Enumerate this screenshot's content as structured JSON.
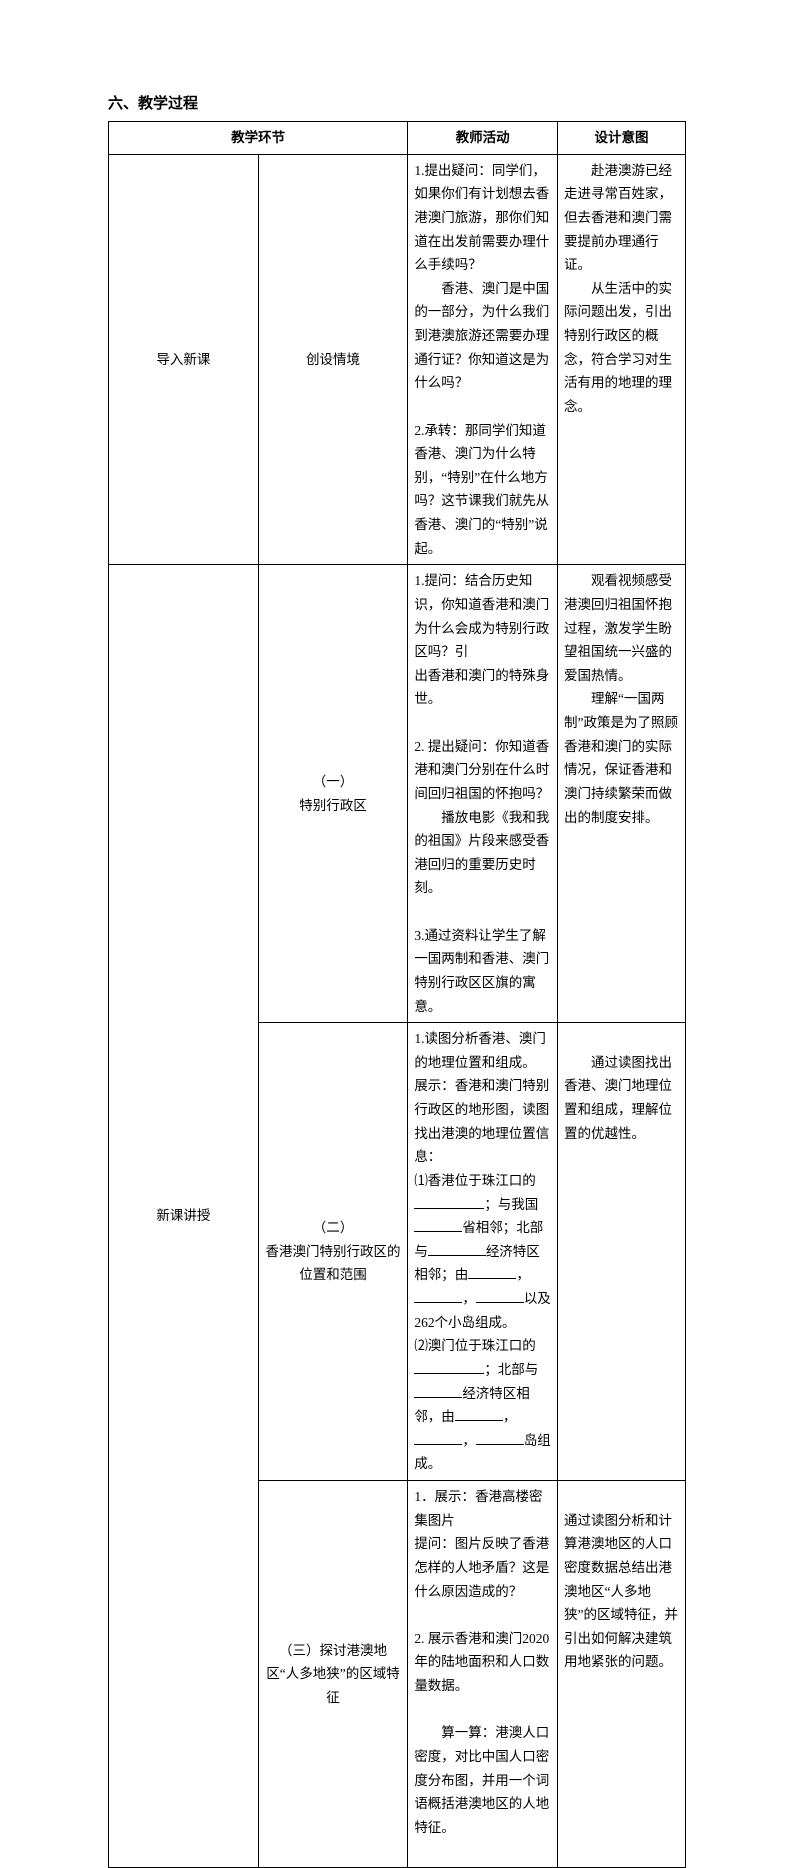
{
  "heading": "六、教学过程",
  "headers": {
    "stage": "教学环节",
    "activity": "教师活动",
    "intent": "设计意图"
  },
  "rows": [
    {
      "stage": "导入新课",
      "sub": "创设情境",
      "activity_html": "1.提出疑问：同学们，如果你们有计划想去香港澳门旅游，那你们知道在出发前需要办理什么手续吗？<br>　　香港、澳门是中国的一部分，为什么我们到港澳旅游还需要办理通行证？你知道这是为什么吗？<br><br>2.承转：那同学们知道香港、澳门为什么特别，“特别”在什么地方吗？这节课我们就先从香港、澳门的“特别”说起。",
      "intent_html": "　　赴港澳游已经走进寻常百姓家，但去香港和澳门需要提前办理通行证。<br>　　从生活中的实际问题出发，引出特别行政区的概念，符合学习对生活有用的地理的理念。"
    },
    {
      "stage": "新课讲授",
      "sub": "（一）<br>特别行政区",
      "activity_html": "1.提问：结合历史知识，你知道香港和澳门为什么会成为特别行政区吗？引<br>出香港和澳门的特殊身世。<br><br>2. 提出疑问：你知道香港和澳门分别在什么时间回归祖国的怀抱吗？<br>　　播放电影《我和我的祖国》片段来感受香港回归的重要历史时刻。<br><br>3.通过资料让学生了解一国两制和香港、澳门特别行政区区旗的寓意。",
      "intent_html": "　　观看视频感受港澳回归祖国怀抱过程，激发学生盼望祖国统一兴盛的爱国热情。<br>　　理解“一国两制”政策是为了照顾香港和澳门的实际情况，保证香港和澳门持续繁荣而做出的制度安排。"
    },
    {
      "sub": "（二）<br>香港澳门特别行政区的位置和范围",
      "activity_html": "1.读图分析香港、澳门的地理位置和组成。<br>展示：香港和澳门特别行政区的地形图，读图找出港澳的地理位置信息：<br>⑴香港位于珠江口的<span class=\"blank blank-l\"></span>；与我国<span class=\"blank blank-s\"></span>省相邻；北部与<span class=\"blank blank-m\"></span>经济特区相邻；由<span class=\"blank blank-s\"></span>，<span class=\"blank blank-s\"></span>，<span class=\"blank blank-s\"></span>以及262个小岛组成。<br>⑵澳门位于珠江口的<span class=\"blank blank-l\"></span>；北部与<span class=\"blank blank-s\"></span>经济特区相邻，由<span class=\"blank blank-s\"></span>，<span class=\"blank blank-s\"></span>，<span class=\"blank blank-s\"></span>岛组成。",
      "intent_html": "<br>　　通过读图找出香港、澳门地理位置和组成，理解位置的优越性。"
    },
    {
      "sub": "（三）探讨港澳地区“人多地狭”的区域特征",
      "activity_html": "1．展示：香港高楼密集图片<br>提问：图片反映了香港怎样的人地矛盾？这是什么原因造成的？<br><br>2. 展示香港和澳门2020年的陆地面积和人口数量数据。<br><br>　　算一算：港澳人口密度，对比中国人口密度分布图，并用一个词语概括港澳地区的人地特征。<br>&nbsp;",
      "intent_html": "<br>通过读图分析和计算港澳地区的人口密度数据总结出港澳地区“人多地狭”的区域特征，并引出如何解决建筑用地紧张的问题。"
    }
  ]
}
